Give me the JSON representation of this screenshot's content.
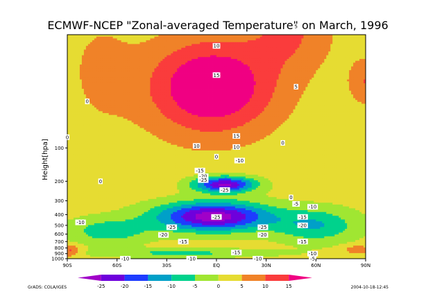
{
  "chart_data": {
    "type": "heatmap",
    "title": "ECMWF-NCEP \"Zonal-averaged Temperature\" on March, 1996",
    "ylabel": "Height[hpa]",
    "xlabel": "",
    "x_ticks": [
      "90S",
      "60S",
      "30S",
      "EQ",
      "30N",
      "60N",
      "90N"
    ],
    "y_ticks": [
      "100",
      "200",
      "300",
      "400",
      "500",
      "600",
      "700",
      "800",
      "900",
      "1000"
    ],
    "y_scale": "log",
    "colorbar": {
      "levels": [
        "-25",
        "-20",
        "-15",
        "-10",
        "-5",
        "0",
        "5",
        "10",
        "15"
      ],
      "colors": [
        "#a000c8",
        "#6e00dc",
        "#1e3cff",
        "#00a0c8",
        "#00d28c",
        "#a0e632",
        "#e6dc32",
        "#f08228",
        "#fa3c3c",
        "#f00082"
      ]
    },
    "contour_labels": [
      {
        "text": "10",
        "x": 0,
        "p": 12
      },
      {
        "text": "15",
        "x": 0,
        "p": 22
      },
      {
        "text": "15",
        "x": 12,
        "p": 78
      },
      {
        "text": "10",
        "x": -12,
        "p": 96
      },
      {
        "text": "10",
        "x": 12,
        "p": 98
      },
      {
        "text": "5",
        "x": 48,
        "p": 8
      },
      {
        "text": "5",
        "x": 48,
        "p": 28
      },
      {
        "text": "0",
        "x": -78,
        "p": 38
      },
      {
        "text": "0",
        "x": -90,
        "p": 80
      },
      {
        "text": "0",
        "x": 40,
        "p": 90
      },
      {
        "text": "0",
        "x": 0,
        "p": 120
      },
      {
        "text": "0",
        "x": -70,
        "p": 200
      },
      {
        "text": "0",
        "x": 45,
        "p": 280
      },
      {
        "text": "-5",
        "x": 48,
        "p": 320
      },
      {
        "text": "-10",
        "x": 14,
        "p": 130
      },
      {
        "text": "-15",
        "x": -10,
        "p": 160
      },
      {
        "text": "-20",
        "x": -8,
        "p": 180
      },
      {
        "text": "-25",
        "x": -8,
        "p": 195
      },
      {
        "text": "-25",
        "x": 5,
        "p": 240
      },
      {
        "text": "-25",
        "x": 0,
        "p": 420
      },
      {
        "text": "-25",
        "x": -27,
        "p": 520
      },
      {
        "text": "-25",
        "x": 28,
        "p": 520
      },
      {
        "text": "-20",
        "x": -32,
        "p": 610
      },
      {
        "text": "-20",
        "x": 28,
        "p": 610
      },
      {
        "text": "-15",
        "x": -20,
        "p": 700
      },
      {
        "text": "-15",
        "x": 12,
        "p": 880
      },
      {
        "text": "-15",
        "x": 52,
        "p": 420
      },
      {
        "text": "-15",
        "x": 52,
        "p": 700
      },
      {
        "text": "-10",
        "x": -82,
        "p": 470
      },
      {
        "text": "-10",
        "x": 58,
        "p": 340
      },
      {
        "text": "-10",
        "x": 58,
        "p": 900
      },
      {
        "text": "-10",
        "x": -55,
        "p": 1000
      },
      {
        "text": "-10",
        "x": -15,
        "p": 1000
      },
      {
        "text": "-10",
        "x": 25,
        "p": 1000
      },
      {
        "text": "-20",
        "x": 52,
        "p": 500
      },
      {
        "text": "-5",
        "x": 58,
        "p": 1000
      }
    ]
  },
  "footer": {
    "left": "GrADS: COLA/IGES",
    "right": "2004-10-18-12:45"
  }
}
